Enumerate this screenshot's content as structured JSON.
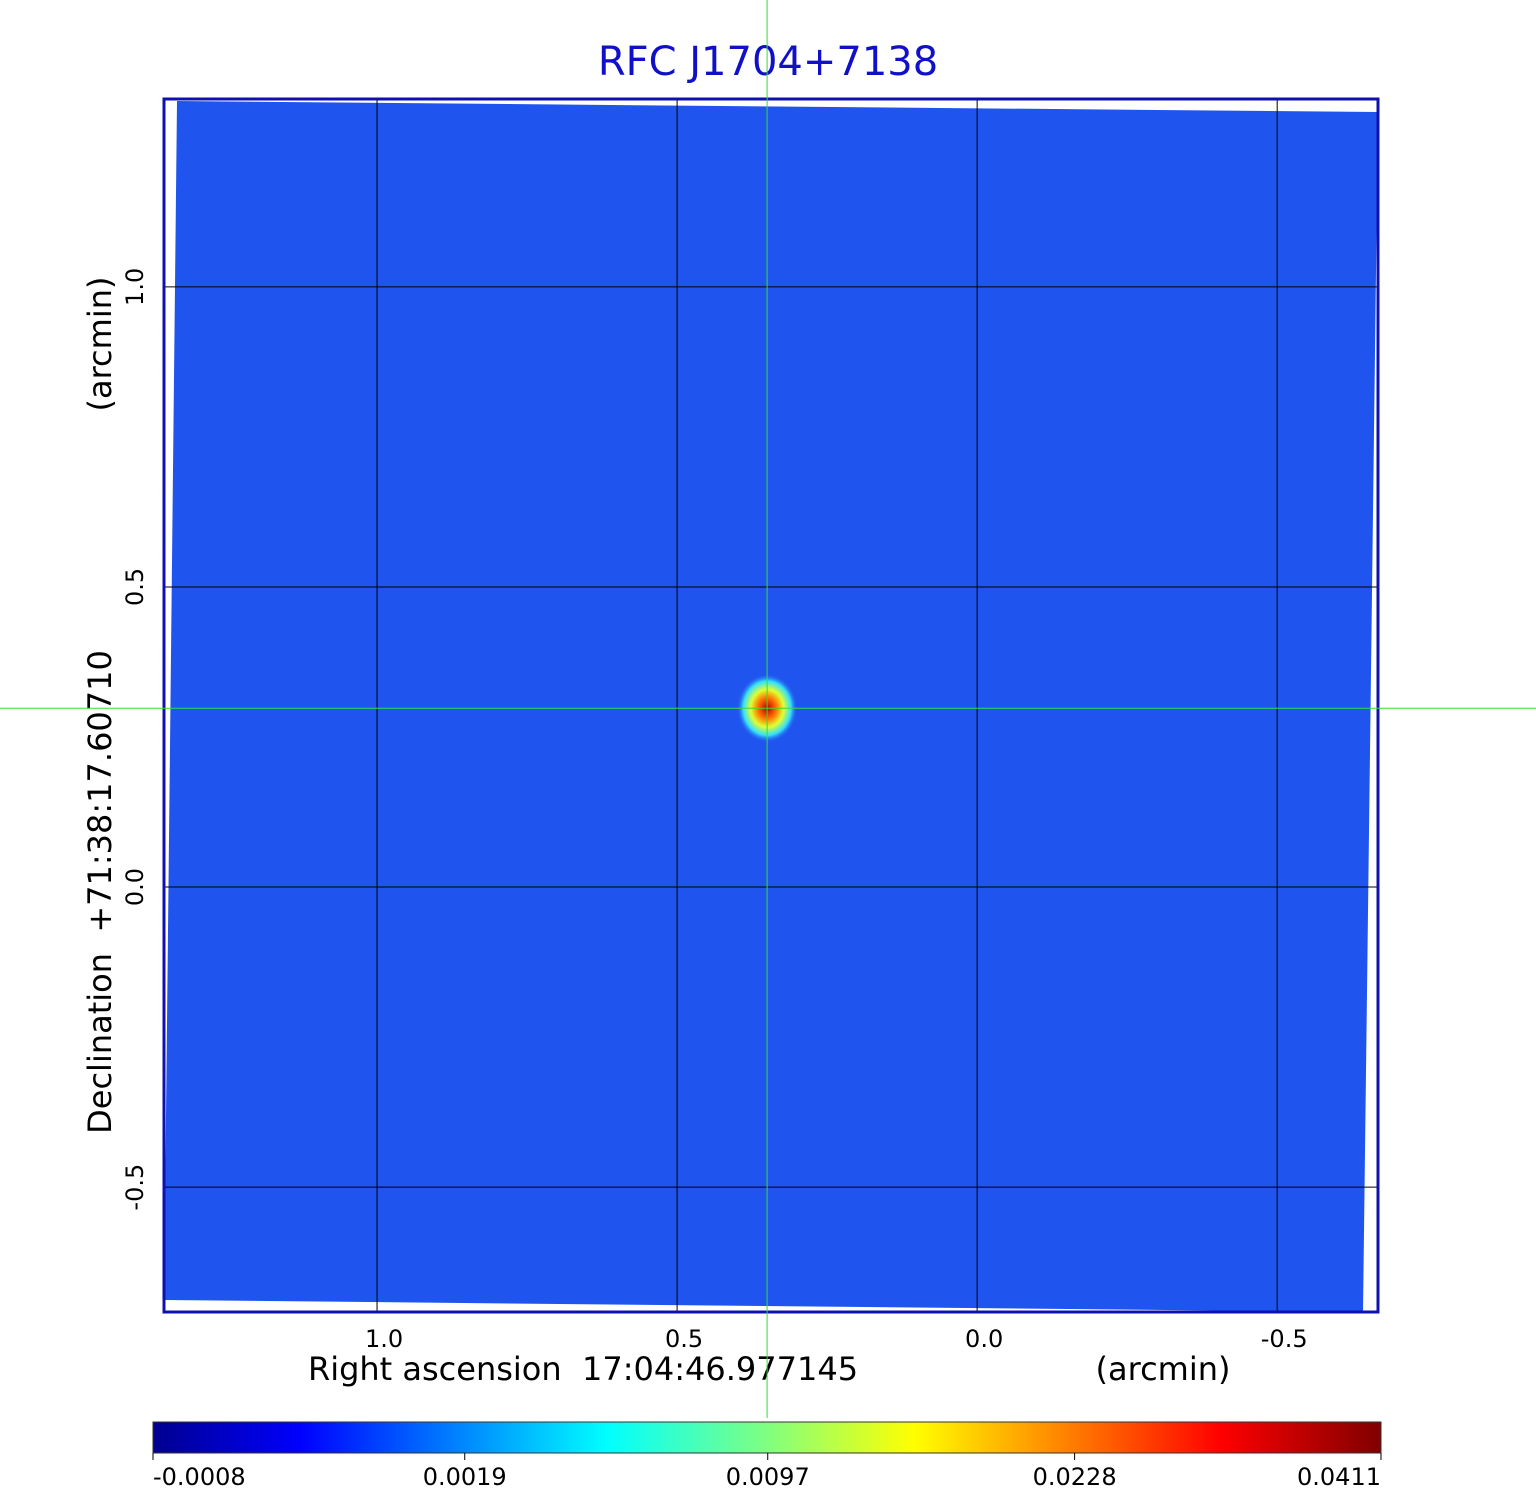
{
  "chart_data": {
    "type": "image",
    "title": "RFC J1704+7138",
    "xlabel": "Right ascension  17:04:46.977145",
    "xunit": "(arcmin)",
    "ylabel": "Declination  +71:38:17.60710",
    "yunit": "(arcmin)",
    "xlim": [
      1.355,
      -0.668
    ],
    "ylim": [
      -0.708,
      1.313
    ],
    "xticks": [
      {
        "value": 1,
        "label": "1.0"
      },
      {
        "value": 0.5,
        "label": "0.5"
      },
      {
        "value": 0,
        "label": "0.0"
      },
      {
        "value": -0.5,
        "label": "-0.5"
      }
    ],
    "yticks": [
      {
        "value": 1,
        "label": "1.0"
      },
      {
        "value": 0.5,
        "label": "0.5"
      },
      {
        "value": 0,
        "label": "0.0"
      },
      {
        "value": -0.5,
        "label": "-0.5"
      }
    ],
    "grid": true,
    "crosshair": {
      "x": 0.35,
      "y": 0.298
    },
    "colormap": "jet",
    "colorbar": {
      "scale": "sqrt",
      "lim": [
        -0.0008,
        0.0411
      ],
      "ticks": [
        -0.0008,
        0.0019,
        0.0097,
        0.0228,
        0.0411
      ]
    }
  }
}
